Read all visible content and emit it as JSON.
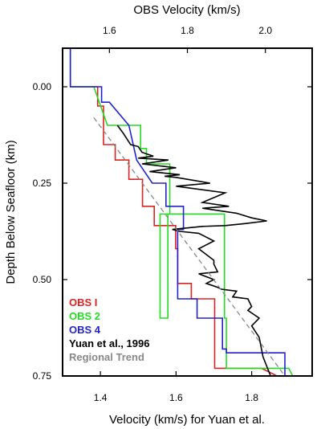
{
  "chart_data": {
    "type": "line",
    "top_xlabel": "OBS Velocity (km/s)",
    "bottom_xlabel": "Velocity (km/s) for Yuan et al.",
    "ylabel": "Depth Below Seafloor (km)",
    "top_xlim": [
      1.48,
      2.12
    ],
    "bottom_xlim": [
      1.3,
      1.96
    ],
    "ylim": [
      -0.1,
      0.75
    ],
    "y_inverted": true,
    "top_ticks": [
      "1.6",
      "1.8",
      "2.0"
    ],
    "top_tick_values": [
      1.6,
      1.8,
      2.0
    ],
    "bottom_ticks": [
      "1.4",
      "1.6",
      "1.8"
    ],
    "bottom_tick_values": [
      1.4,
      1.6,
      1.8
    ],
    "y_ticks": [
      "0.00",
      "0.25",
      "0.50",
      "0.75"
    ],
    "y_tick_values": [
      0.0,
      0.25,
      0.5,
      0.75
    ],
    "grid": false,
    "legend_position": "bottom-left",
    "series": [
      {
        "name": "OBS I",
        "color": "#dd2222",
        "axis": "top",
        "x": [
          1.5,
          1.5,
          1.57,
          1.57,
          1.585,
          1.585,
          1.615,
          1.615,
          1.65,
          1.65,
          1.685,
          1.685,
          1.715,
          1.715,
          1.77,
          1.77,
          1.775,
          1.775,
          1.81,
          1.81,
          1.87,
          1.87,
          1.99,
          2.03
        ],
        "y": [
          -0.1,
          0.0,
          0.0,
          0.05,
          0.05,
          0.15,
          0.15,
          0.19,
          0.19,
          0.24,
          0.24,
          0.31,
          0.31,
          0.36,
          0.36,
          0.42,
          0.42,
          0.51,
          0.51,
          0.55,
          0.55,
          0.73,
          0.73,
          0.75
        ]
      },
      {
        "name": "OBS 2",
        "color": "#22dd22",
        "axis": "top",
        "x": [
          1.5,
          1.5,
          1.56,
          1.595,
          1.595,
          1.68,
          1.68,
          1.695,
          1.695,
          1.755,
          1.755,
          1.75,
          1.75,
          1.73,
          1.73,
          1.895,
          1.895,
          1.9,
          1.9,
          2.06,
          2.07
        ],
        "y": [
          -0.1,
          0.0,
          0.0,
          0.1,
          0.1,
          0.1,
          0.16,
          0.16,
          0.2,
          0.2,
          0.33,
          0.33,
          0.6,
          0.6,
          0.33,
          0.33,
          0.6,
          0.6,
          0.73,
          0.73,
          0.75
        ]
      },
      {
        "name": "OBS 4",
        "color": "#2222cc",
        "axis": "top",
        "x": [
          1.5,
          1.5,
          1.58,
          1.58,
          1.6,
          1.65,
          1.65,
          1.67,
          1.67,
          1.71,
          1.71,
          1.745,
          1.745,
          1.745,
          1.79,
          1.79,
          1.775,
          1.775,
          1.825,
          1.825,
          1.89,
          1.89,
          1.9,
          1.9,
          2.05,
          2.05
        ],
        "y": [
          -0.1,
          0.0,
          0.0,
          0.04,
          0.04,
          0.1,
          0.1,
          0.19,
          0.19,
          0.25,
          0.25,
          0.25,
          0.31,
          0.31,
          0.31,
          0.37,
          0.37,
          0.55,
          0.55,
          0.6,
          0.6,
          0.68,
          0.68,
          0.69,
          0.69,
          0.75
        ]
      },
      {
        "name": "Yuan et al., 1996",
        "color": "#000000",
        "axis": "bottom",
        "x": [
          1.445,
          1.46,
          1.48,
          1.5,
          1.51,
          1.54,
          1.5,
          1.58,
          1.51,
          1.6,
          1.53,
          1.61,
          1.57,
          1.6,
          1.69,
          1.6,
          1.73,
          1.67,
          1.74,
          1.67,
          1.76,
          1.8,
          1.84,
          1.78,
          1.73,
          1.67,
          1.59,
          1.61,
          1.66,
          1.7,
          1.66,
          1.7,
          1.7,
          1.71,
          1.66,
          1.7,
          1.68,
          1.71,
          1.72,
          1.76,
          1.75,
          1.79,
          1.8,
          1.79,
          1.82,
          1.8,
          1.82,
          1.83,
          1.85
        ],
        "y": [
          0.1,
          0.12,
          0.15,
          0.155,
          0.17,
          0.18,
          0.185,
          0.19,
          0.2,
          0.21,
          0.22,
          0.228,
          0.232,
          0.235,
          0.25,
          0.258,
          0.275,
          0.3,
          0.31,
          0.315,
          0.328,
          0.34,
          0.348,
          0.355,
          0.36,
          0.362,
          0.37,
          0.375,
          0.38,
          0.4,
          0.42,
          0.45,
          0.46,
          0.48,
          0.485,
          0.5,
          0.51,
          0.52,
          0.525,
          0.53,
          0.545,
          0.55,
          0.57,
          0.58,
          0.6,
          0.62,
          0.65,
          0.7,
          0.75
        ]
      },
      {
        "name": "Regional Trend",
        "color": "#888888",
        "dashed": true,
        "axis": "top",
        "x": [
          1.56,
          2.05
        ],
        "y": [
          0.08,
          0.75
        ]
      }
    ]
  }
}
